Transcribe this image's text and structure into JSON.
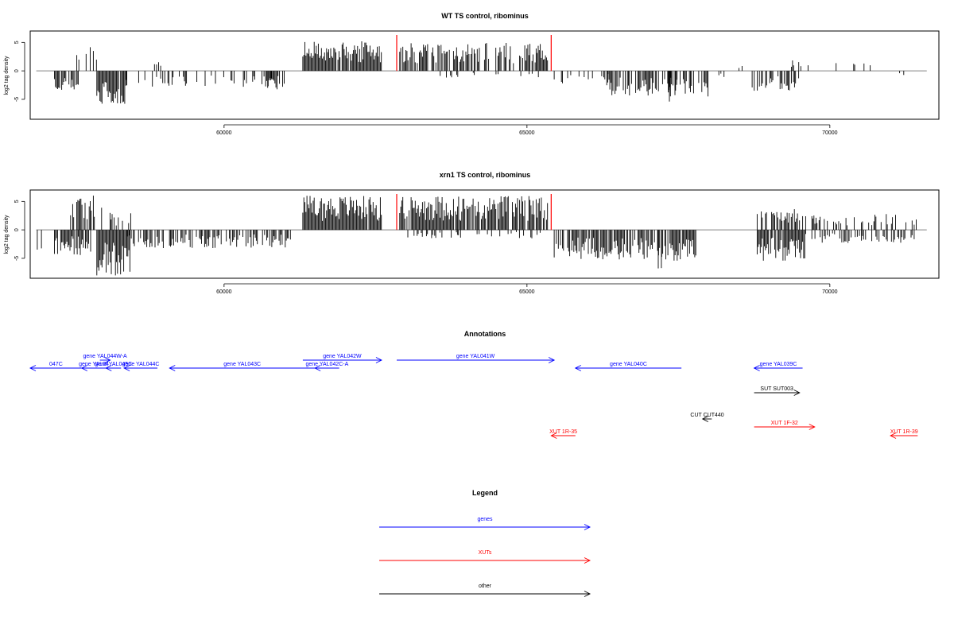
{
  "panels": [
    {
      "title": "WT TS control, ribominus",
      "ylabel": "log2 tag density",
      "chart_data": {
        "type": "bar",
        "title": "WT TS control, ribominus",
        "ylabel": "log2 tag density",
        "xlim": [
          56800,
          71800
        ],
        "ylim": [
          -8.5,
          7
        ],
        "xticks": [
          60000,
          65000,
          70000
        ],
        "yticks": [
          -5,
          0,
          5
        ],
        "baseline_range": [
          56900,
          71600
        ],
        "markers": [
          62850,
          65400
        ],
        "profile": [
          {
            "start": 57200,
            "end": 57600,
            "peak": -3.5,
            "density": 0.7,
            "sign": -1
          },
          {
            "start": 57450,
            "end": 57980,
            "peak": 4.4,
            "density": 0.3,
            "sign": 1
          },
          {
            "start": 57900,
            "end": 58400,
            "peak": -6.0,
            "density": 0.95,
            "sign": -1
          },
          {
            "start": 58300,
            "end": 58800,
            "peak": -2.5,
            "density": 0.2,
            "sign": -1
          },
          {
            "start": 58800,
            "end": 59000,
            "peak": 1.6,
            "density": 0.15,
            "sign": 1
          },
          {
            "start": 58800,
            "end": 61000,
            "peak": -2.8,
            "density": 0.25,
            "sign": -1
          },
          {
            "start": 60600,
            "end": 61100,
            "peak": -3.5,
            "density": 0.3,
            "sign": -1
          },
          {
            "start": 61300,
            "end": 62600,
            "peak": 5.2,
            "density": 0.95,
            "sign": 1
          },
          {
            "start": 62900,
            "end": 65350,
            "peak": 5.0,
            "density": 0.7,
            "sign": 1
          },
          {
            "start": 63500,
            "end": 65300,
            "peak": -1.2,
            "density": 0.15,
            "sign": -1
          },
          {
            "start": 65450,
            "end": 66400,
            "peak": -2.2,
            "density": 0.3,
            "sign": -1
          },
          {
            "start": 66300,
            "end": 68000,
            "peak": -4.5,
            "density": 0.6,
            "sign": -1
          },
          {
            "start": 67300,
            "end": 67500,
            "peak": -5.4,
            "density": 0.5,
            "sign": -1
          },
          {
            "start": 68150,
            "end": 68300,
            "peak": -1.4,
            "density": 0.2,
            "sign": -1
          },
          {
            "start": 68500,
            "end": 68600,
            "peak": 1.1,
            "density": 0.2,
            "sign": 1
          },
          {
            "start": 68700,
            "end": 69500,
            "peak": -3.5,
            "density": 0.55,
            "sign": -1
          },
          {
            "start": 69350,
            "end": 69650,
            "peak": 2.6,
            "density": 0.15,
            "sign": 1
          },
          {
            "start": 69950,
            "end": 70700,
            "peak": 1.6,
            "density": 0.12,
            "sign": 1
          },
          {
            "start": 71100,
            "end": 71300,
            "peak": -1.2,
            "density": 0.25,
            "sign": -1
          }
        ]
      }
    },
    {
      "title": "xrn1 TS control, ribominus",
      "ylabel": "log2 tag density",
      "chart_data": {
        "type": "bar",
        "title": "xrn1 TS control, ribominus",
        "ylabel": "log2 tag density",
        "xlim": [
          56800,
          71800
        ],
        "ylim": [
          -8.5,
          7
        ],
        "xticks": [
          60000,
          65000,
          70000
        ],
        "yticks": [
          -5,
          0,
          5
        ],
        "baseline_range": [
          56900,
          71600
        ],
        "markers": [
          62850,
          65400
        ],
        "profile": [
          {
            "start": 56900,
            "end": 57000,
            "peak": -4.0,
            "density": 0.5,
            "sign": -1
          },
          {
            "start": 57100,
            "end": 57200,
            "peak": 2.4,
            "density": 0.3,
            "sign": 1
          },
          {
            "start": 57200,
            "end": 57800,
            "peak": -4.5,
            "density": 0.8,
            "sign": -1
          },
          {
            "start": 57450,
            "end": 58000,
            "peak": 6.2,
            "density": 0.55,
            "sign": 1
          },
          {
            "start": 57900,
            "end": 58450,
            "peak": -8.0,
            "density": 0.97,
            "sign": -1
          },
          {
            "start": 58100,
            "end": 58500,
            "peak": 3.0,
            "density": 0.3,
            "sign": 1
          },
          {
            "start": 58400,
            "end": 61100,
            "peak": -3.2,
            "density": 0.6,
            "sign": -1
          },
          {
            "start": 61300,
            "end": 62600,
            "peak": 6.0,
            "density": 0.97,
            "sign": 1
          },
          {
            "start": 62900,
            "end": 65350,
            "peak": 6.0,
            "density": 0.9,
            "sign": 1
          },
          {
            "start": 63000,
            "end": 65300,
            "peak": -1.5,
            "density": 0.25,
            "sign": -1
          },
          {
            "start": 65450,
            "end": 67800,
            "peak": -5.4,
            "density": 0.8,
            "sign": -1
          },
          {
            "start": 67150,
            "end": 67250,
            "peak": -6.8,
            "density": 0.5,
            "sign": -1
          },
          {
            "start": 68800,
            "end": 69600,
            "peak": -5.5,
            "density": 0.85,
            "sign": -1
          },
          {
            "start": 68800,
            "end": 69600,
            "peak": 3.8,
            "density": 0.6,
            "sign": 1
          },
          {
            "start": 69600,
            "end": 71500,
            "peak": 2.8,
            "density": 0.3,
            "sign": 1
          },
          {
            "start": 69600,
            "end": 71500,
            "peak": -2.3,
            "density": 0.35,
            "sign": -1
          }
        ]
      }
    }
  ],
  "annotations": {
    "title": "Annotations",
    "features": [
      {
        "label": "047C",
        "start": 56800,
        "end": 57650,
        "strand": "-",
        "row": 1,
        "kind": "gene"
      },
      {
        "label": "gene YAL04",
        "start": 57650,
        "end": 58050,
        "strand": "-",
        "row": 1,
        "kind": "gene"
      },
      {
        "label": "gene YAL044W-A",
        "start": 57950,
        "end": 58120,
        "strand": "+",
        "row": 0,
        "kind": "gene"
      },
      {
        "label": "gene YAL045C",
        "start": 58050,
        "end": 58300,
        "strand": "-",
        "row": 1,
        "kind": "gene"
      },
      {
        "label": "gene YAL044C",
        "start": 58350,
        "end": 58900,
        "strand": "-",
        "row": 1,
        "kind": "gene"
      },
      {
        "label": "gene YAL043C",
        "start": 59100,
        "end": 61500,
        "strand": "-",
        "row": 1,
        "kind": "gene"
      },
      {
        "label": "gene YAL042C-A",
        "start": 61500,
        "end": 61900,
        "strand": "-",
        "row": 1,
        "kind": "gene"
      },
      {
        "label": "gene YAL042W",
        "start": 61300,
        "end": 62600,
        "strand": "+",
        "row": 0,
        "kind": "gene"
      },
      {
        "label": "gene YAL041W",
        "start": 62850,
        "end": 65450,
        "strand": "+",
        "row": 0,
        "kind": "gene"
      },
      {
        "label": "gene YAL040C",
        "start": 65800,
        "end": 67550,
        "strand": "-",
        "row": 1,
        "kind": "gene"
      },
      {
        "label": "gene YAL039C",
        "start": 68750,
        "end": 69550,
        "strand": "-",
        "row": 1,
        "kind": "gene"
      },
      {
        "label": "SUT SUT003",
        "start": 68750,
        "end": 69500,
        "strand": "+",
        "row": 2,
        "kind": "other"
      },
      {
        "label": "CUT CUT440",
        "start": 67900,
        "end": 68050,
        "strand": "-",
        "row": 3,
        "kind": "other"
      },
      {
        "label": "XUT 1F-32",
        "start": 68750,
        "end": 69750,
        "strand": "+",
        "row": 4,
        "kind": "xut"
      },
      {
        "label": "XUT 1R-35",
        "start": 65400,
        "end": 65800,
        "strand": "-",
        "row": 5,
        "kind": "xut"
      },
      {
        "label": "XUT 1R-39",
        "start": 71000,
        "end": 71450,
        "strand": "-",
        "row": 5,
        "kind": "xut"
      }
    ]
  },
  "legend": {
    "title": "Legend",
    "items": [
      {
        "label": "genes",
        "color": "#0000ff"
      },
      {
        "label": "XUTs",
        "color": "#ff0000"
      },
      {
        "label": "other",
        "color": "#000000"
      }
    ]
  },
  "colors": {
    "gene": "#0000ff",
    "xut": "#ff0000",
    "other": "#000000",
    "marker": "#ff0000",
    "baseline": "#808080"
  }
}
